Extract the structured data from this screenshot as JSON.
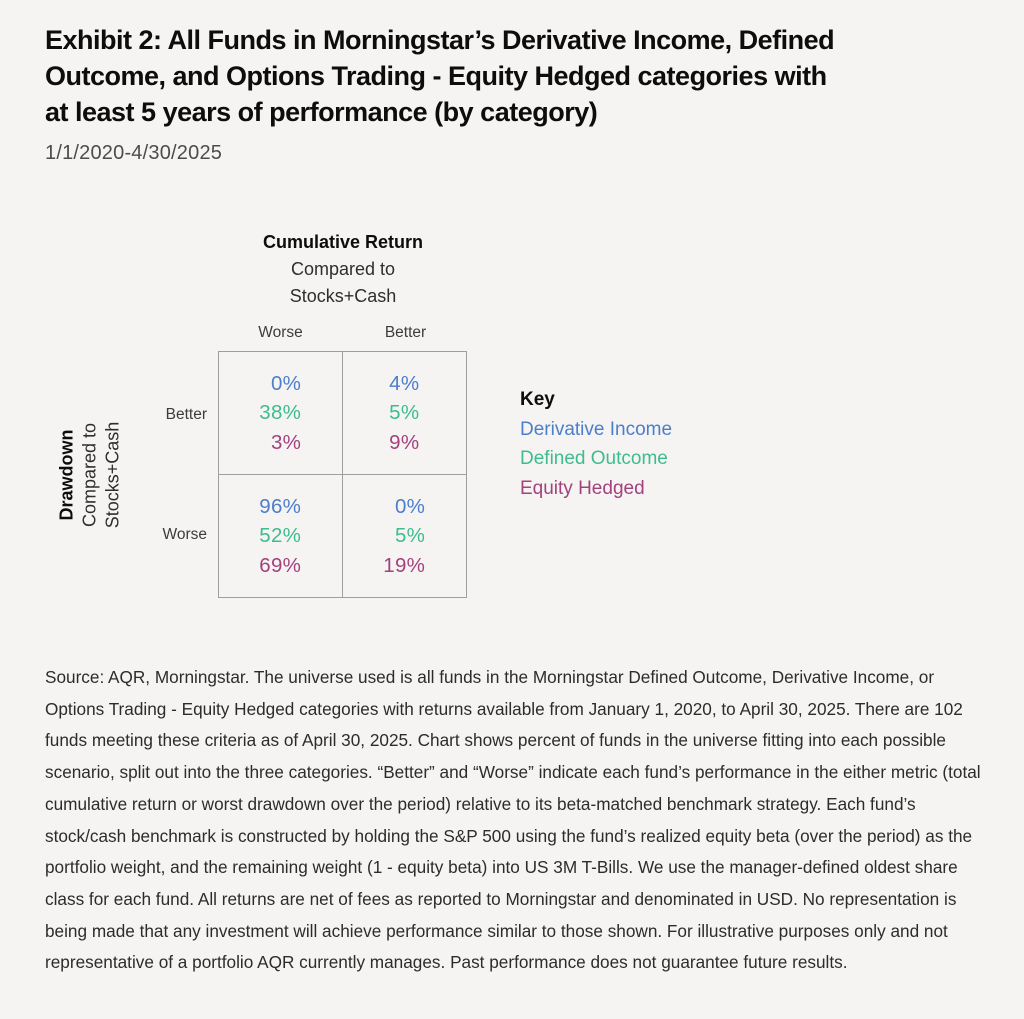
{
  "header": {
    "title": "Exhibit 2: All Funds in Morningstar’s Derivative Income, Defined Outcome, and Options Trading - Equity Hedged categories with at least 5 years of performance (by category)",
    "title_lines": [
      "Exhibit 2: All Funds in Morningstar’s Derivative Income, Defined",
      "Outcome, and Options Trading - Equity Hedged categories with",
      "at least 5 years of performance (by category)"
    ],
    "date_range": "1/1/2020-4/30/2025"
  },
  "chart_data": {
    "type": "table",
    "title": "Exhibit 2: All Funds in Morningstar’s Derivative Income, Defined Outcome, and Options Trading - Equity Hedged categories with at least 5 years of performance (by category)",
    "subtitle": "1/1/2020-4/30/2025",
    "x_axis": {
      "title": "Cumulative Return",
      "subtitle_line1": "Compared to",
      "subtitle_line2": "Stocks+Cash",
      "categories": [
        "Worse",
        "Better"
      ]
    },
    "y_axis": {
      "title": "Drawdown",
      "subtitle_line1": "Compared to",
      "subtitle_line2": "Stocks+Cash",
      "categories": [
        "Better",
        "Worse"
      ]
    },
    "legend": {
      "title": "Key",
      "position": "right",
      "entries": [
        {
          "label": "Derivative Income",
          "color": "#4b7ecb"
        },
        {
          "label": "Defined Outcome",
          "color": "#3ebc8f"
        },
        {
          "label": "Equity Hedged",
          "color": "#a3417f"
        }
      ]
    },
    "cells": [
      {
        "drawdown": "Better",
        "cumulative_return": "Worse",
        "values": [
          "0%",
          "38%",
          "3%"
        ]
      },
      {
        "drawdown": "Better",
        "cumulative_return": "Better",
        "values": [
          "4%",
          "5%",
          "9%"
        ]
      },
      {
        "drawdown": "Worse",
        "cumulative_return": "Worse",
        "values": [
          "96%",
          "52%",
          "69%"
        ]
      },
      {
        "drawdown": "Worse",
        "cumulative_return": "Better",
        "values": [
          "0%",
          "5%",
          "19%"
        ]
      }
    ],
    "series_order_in_cells": [
      "Derivative Income",
      "Defined Outcome",
      "Equity Hedged"
    ],
    "grid": true
  },
  "footer": {
    "source_note": "Source: AQR, Morningstar. The universe used is all funds in the Morningstar Defined Outcome, Derivative Income, or Options Trading - Equity Hedged categories with returns available from January 1, 2020, to April 30, 2025. There are 102 funds meeting these criteria as of April 30, 2025. Chart shows percent of funds in the universe fitting into each possible scenario, split out into the three categories. “Better” and “Worse” indicate each fund’s performance in the either metric (total cumulative return or worst drawdown over the period) relative to its beta-matched benchmark strategy. Each fund’s stock/cash benchmark is constructed by holding the S&P 500 using the fund’s realized equity beta (over the period) as the portfolio weight, and the remaining weight (1 - equity beta) into US 3M T-Bills. We use the manager-defined oldest share class for each fund. All returns are net of fees as reported to Morningstar and denominated in USD. No representation is being made that any investment will achieve performance similar to those shown. For illustrative purposes only and not representative of a portfolio AQR currently manages. Past performance does not guarantee future results."
  },
  "colors": {
    "background": "#f5f4f2",
    "derivative_income": "#4b7ecb",
    "defined_outcome": "#3ebc8f",
    "equity_hedged": "#a3417f",
    "grid_border": "#9f9f9f",
    "title_text": "#0d0d0d",
    "body_text": "#2c2c2c"
  }
}
